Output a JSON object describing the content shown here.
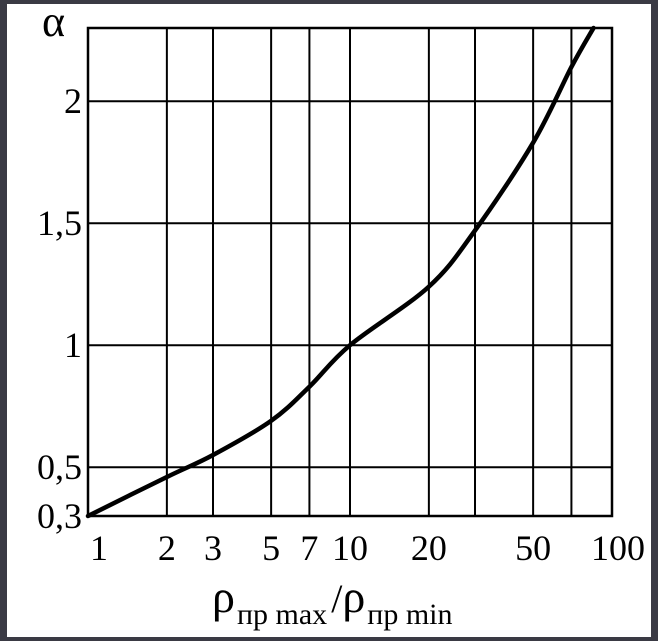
{
  "chart_data": {
    "type": "line",
    "x_scale": "log",
    "grid": true,
    "xlim": [
      1,
      100
    ],
    "ylim": [
      0.3,
      2.3
    ],
    "x_ticks": [
      1,
      2,
      3,
      5,
      7,
      10,
      20,
      50,
      100
    ],
    "x_tick_labels": [
      "1",
      "2",
      "3",
      "5",
      "7",
      "10",
      "20",
      "50",
      "100"
    ],
    "x_gridlines": [
      2,
      3,
      5,
      7,
      10,
      20,
      30,
      50,
      70
    ],
    "y_ticks": [
      0.3,
      0.5,
      1,
      1.5,
      2
    ],
    "y_tick_labels": [
      "0,3",
      "0,5",
      "1",
      "1,5",
      "2"
    ],
    "y_gridlines": [
      0.5,
      1,
      1.5,
      2
    ],
    "ylabel": "α",
    "xlabel": {
      "rho_left": "ρ",
      "sub_left": "пр max",
      "slash": "/",
      "rho_right": "ρ",
      "sub_right": "пр min"
    },
    "series": [
      {
        "x": [
          1,
          2,
          3,
          5,
          7,
          10,
          20,
          30,
          50,
          70,
          85
        ],
        "y": [
          0.3,
          0.46,
          0.55,
          0.69,
          0.83,
          1.0,
          1.24,
          1.47,
          1.83,
          2.14,
          2.3
        ]
      }
    ],
    "colors": {
      "line": "#000000",
      "grid": "#000000",
      "frame": "#3a3a44"
    }
  }
}
